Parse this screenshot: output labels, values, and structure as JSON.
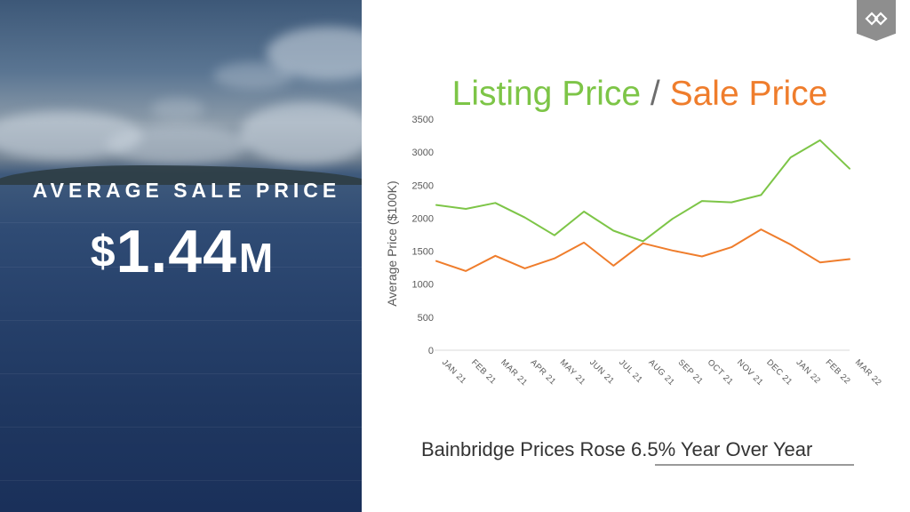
{
  "hero": {
    "label": "AVERAGE SALE PRICE",
    "value_prefix": "$",
    "value_number": "1.44",
    "value_unit": "M"
  },
  "brand": {
    "icon": "diamond-logo-icon"
  },
  "chart_title": {
    "listing": "Listing Price",
    "separator": "/",
    "sale": "Sale Price"
  },
  "footer": {
    "lead": "Bainbridge Prices Rose",
    "highlight": "6.5% Year Over Year"
  },
  "colors": {
    "listing": "#7dc547",
    "sale": "#ef7d2c",
    "axis": "#d9d9d9",
    "text": "#595959"
  },
  "chart_data": {
    "type": "line",
    "title": "Listing Price / Sale Price",
    "xlabel": "",
    "ylabel": "Average Price ($100K)",
    "ylim": [
      0,
      3500
    ],
    "yticks": [
      0,
      500,
      1000,
      1500,
      2000,
      2500,
      3000,
      3500
    ],
    "grid": false,
    "categories": [
      "JAN 21",
      "FEB 21",
      "MAR 21",
      "APR 21",
      "MAY 21",
      "JUN 21",
      "JUL 21",
      "AUG 21",
      "SEP 21",
      "OCT 21",
      "NOV 21",
      "DEC 21",
      "JAN 22",
      "FEB 22",
      "MAR 22"
    ],
    "series": [
      {
        "name": "Listing Price",
        "color": "#7dc547",
        "values": [
          2200,
          2140,
          2230,
          2010,
          1740,
          2100,
          1810,
          1650,
          1990,
          2260,
          2240,
          2350,
          2920,
          3180,
          2750
        ]
      },
      {
        "name": "Sale Price",
        "color": "#ef7d2c",
        "values": [
          1350,
          1200,
          1430,
          1240,
          1390,
          1630,
          1280,
          1620,
          1510,
          1420,
          1560,
          1830,
          1600,
          1330,
          1380
        ]
      }
    ]
  }
}
